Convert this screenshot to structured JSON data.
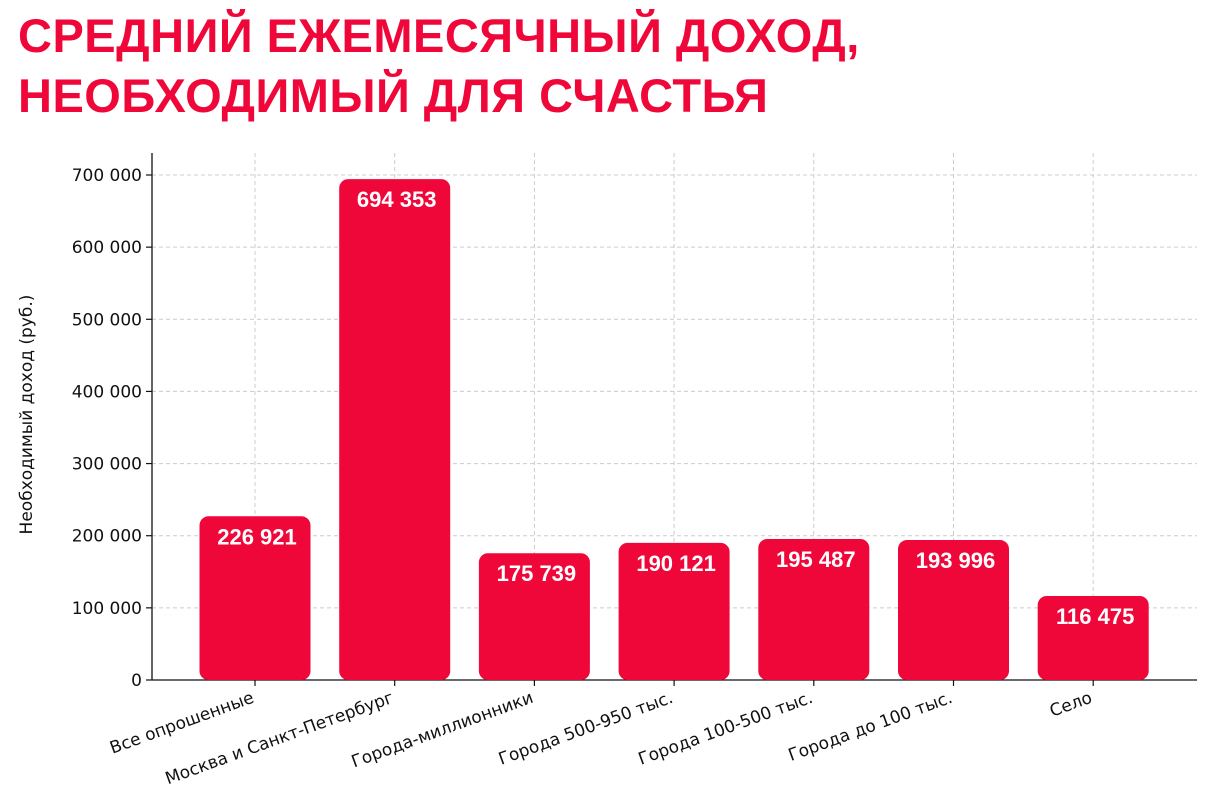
{
  "title": "СРЕДНИЙ ЕЖЕМЕСЯЧНЫЙ ДОХОД,\nНЕОБХОДИМЫЙ ДЛЯ СЧАСТЬЯ",
  "chart_data": {
    "type": "bar",
    "categories": [
      "Все опрошенные",
      "Москва и Санкт-Петербург",
      "Города-миллионники",
      "Города 500-950 тыс.",
      "Города 100-500 тыс.",
      "Города до 100 тыс.",
      "Село"
    ],
    "values": [
      226921,
      694353,
      175739,
      190121,
      195487,
      193996,
      116475
    ],
    "value_labels": [
      "226 921",
      "694 353",
      "175 739",
      "190 121",
      "195 487",
      "193 996",
      "116 475"
    ],
    "ylabel": "Необходимый доход (руб.)",
    "xlabel": "",
    "ylim": [
      0,
      700000
    ],
    "yticks": [
      0,
      100000,
      200000,
      300000,
      400000,
      500000,
      600000,
      700000
    ],
    "ytick_labels": [
      "0",
      "100 000",
      "200 000",
      "300 000",
      "400 000",
      "500 000",
      "600 000",
      "700 000"
    ],
    "grid": true,
    "bar_color": "#f0073a",
    "grid_color": "#cccccc"
  }
}
